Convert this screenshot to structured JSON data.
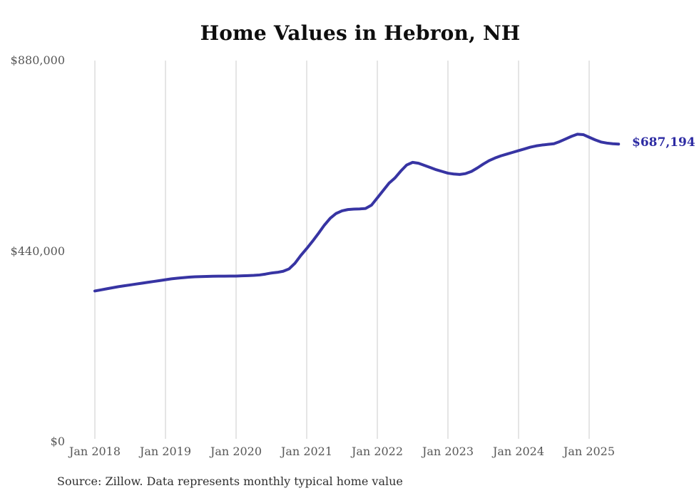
{
  "chart_data": {
    "type": "line",
    "title": "Home Values in Hebron, NH",
    "source_note": "Source: Zillow. Data represents monthly typical home value",
    "end_label": "$687,194",
    "latest_value": 687194,
    "xlabel": "",
    "ylabel": "",
    "ylim": [
      0,
      880000
    ],
    "y_ticks": [
      "$880,000",
      "$440,000",
      "$0"
    ],
    "y_tick_values": [
      880000,
      440000,
      0
    ],
    "x_ticks": [
      "Jan 2018",
      "Jan 2019",
      "Jan 2020",
      "Jan 2021",
      "Jan 2022",
      "Jan 2023",
      "Jan 2024",
      "Jan 2025"
    ],
    "x_start": "2018-01",
    "x_interval": "monthly",
    "grid": "vertical-only",
    "legend": "none",
    "series": [
      {
        "name": "Typical home value",
        "values": [
          348000,
          350500,
          353000,
          355500,
          358000,
          360000,
          362000,
          364000,
          366000,
          368000,
          370000,
          372000,
          374000,
          376000,
          377500,
          378800,
          380000,
          380800,
          381300,
          381700,
          382000,
          382200,
          382300,
          382400,
          382500,
          383000,
          383500,
          384000,
          385000,
          387000,
          389500,
          391000,
          393500,
          399000,
          412000,
          430000,
          446000,
          463000,
          481000,
          500000,
          516000,
          527000,
          533000,
          536000,
          537000,
          537500,
          538500,
          546000,
          563000,
          580000,
          597000,
          609000,
          625000,
          639000,
          645000,
          643000,
          638000,
          633000,
          628000,
          624000,
          620000,
          618000,
          617000,
          619000,
          624000,
          632000,
          641000,
          649000,
          655000,
          660000,
          664000,
          668000,
          672000,
          676000,
          680000,
          683000,
          685000,
          686500,
          688000,
          693000,
          699000,
          705000,
          710000,
          709000,
          703000,
          697000,
          692000,
          689500,
          688000,
          687194
        ]
      }
    ]
  },
  "colors": {
    "line": "#3734a3",
    "end_label": "#2d2ba3",
    "grid": "#cbcbcb",
    "tick_text": "#575757",
    "title_text": "#0e0e0e",
    "source_text": "#303030",
    "background": "#ffffff"
  }
}
